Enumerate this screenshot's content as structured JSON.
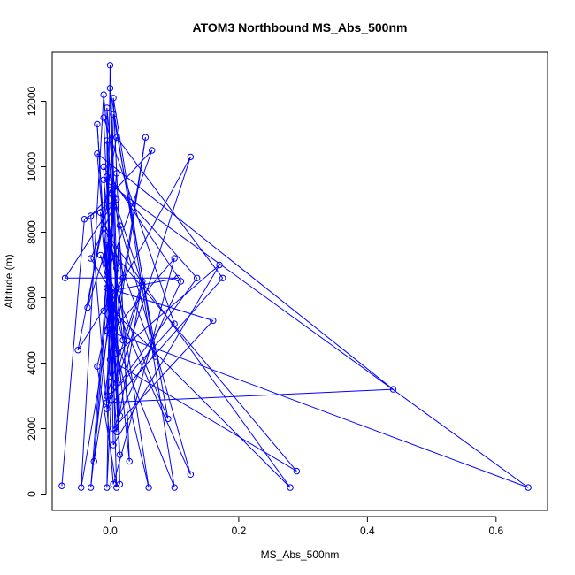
{
  "chart_data": {
    "type": "line",
    "title": "ATOM3 Northbound MS_Abs_500nm",
    "xlabel": "MS_Abs_500nm",
    "ylabel": "Altitude (m)",
    "xlim": [
      -0.09,
      0.68
    ],
    "ylim": [
      -500,
      13500
    ],
    "x_ticks": [
      0.0,
      0.2,
      0.4,
      0.6
    ],
    "x_tick_labels": [
      "0.0",
      "0.2",
      "0.4",
      "0.6"
    ],
    "y_ticks": [
      0,
      2000,
      4000,
      6000,
      8000,
      10000,
      12000
    ],
    "y_tick_labels": [
      "0",
      "2000",
      "4000",
      "6000",
      "8000",
      "10000",
      "12000"
    ],
    "grid": false,
    "series": [
      {
        "color": "#0000ff",
        "marker": "open-circle",
        "points": [
          [
            -0.075,
            250
          ],
          [
            -0.04,
            8400
          ],
          [
            0.01,
            9000
          ],
          [
            -0.03,
            7200
          ],
          [
            0.005,
            6100
          ],
          [
            -0.02,
            3900
          ],
          [
            0.01,
            200
          ],
          [
            -0.005,
            10800
          ],
          [
            0.0,
            5300
          ],
          [
            -0.045,
            200
          ],
          [
            -0.01,
            12200
          ],
          [
            0.005,
            8800
          ],
          [
            -0.005,
            3000
          ],
          [
            0.05,
            6500
          ],
          [
            0.01,
            1900
          ],
          [
            -0.02,
            11300
          ],
          [
            0.0,
            4900
          ],
          [
            0.1,
            7200
          ],
          [
            0.005,
            300
          ],
          [
            -0.03,
            8500
          ],
          [
            0.065,
            10500
          ],
          [
            -0.005,
            6700
          ],
          [
            0.015,
            2400
          ],
          [
            0.0,
            12400
          ],
          [
            0.1,
            200
          ],
          [
            -0.01,
            5600
          ],
          [
            0.01,
            9800
          ],
          [
            -0.025,
            1000
          ],
          [
            0.055,
            10900
          ],
          [
            0.0,
            3600
          ],
          [
            0.015,
            8200
          ],
          [
            -0.005,
            200
          ],
          [
            0.005,
            11600
          ],
          [
            0.09,
            2300
          ],
          [
            -0.015,
            7300
          ],
          [
            0.02,
            4700
          ],
          [
            -0.01,
            9600
          ],
          [
            0.65,
            200
          ],
          [
            -0.005,
            5000
          ],
          [
            0.0,
            13100
          ],
          [
            0.01,
            6900
          ],
          [
            -0.005,
            2800
          ],
          [
            0.44,
            3200
          ],
          [
            -0.02,
            10400
          ],
          [
            0.0,
            5700
          ],
          [
            0.28,
            200
          ],
          [
            -0.01,
            8100
          ],
          [
            0.01,
            4300
          ],
          [
            0.17,
            7000
          ],
          [
            0.005,
            1500
          ],
          [
            -0.005,
            11800
          ],
          [
            0.02,
            6600
          ],
          [
            -0.05,
            4400
          ],
          [
            0.0,
            9300
          ],
          [
            0.125,
            600
          ],
          [
            -0.005,
            6300
          ],
          [
            0.16,
            5300
          ],
          [
            0.005,
            2000
          ],
          [
            0.11,
            6500
          ],
          [
            -0.01,
            10000
          ],
          [
            0.0,
            4100
          ],
          [
            0.29,
            700
          ],
          [
            -0.005,
            7600
          ],
          [
            0.03,
            1000
          ],
          [
            0.005,
            12100
          ],
          [
            0.07,
            4200
          ],
          [
            -0.015,
            8600
          ],
          [
            0.01,
            3400
          ],
          [
            0.125,
            10300
          ],
          [
            0.0,
            5800
          ],
          [
            -0.03,
            200
          ],
          [
            0.005,
            9100
          ],
          [
            0.05,
            6400
          ],
          [
            -0.005,
            2600
          ],
          [
            0.175,
            6600
          ],
          [
            0.01,
            10900
          ],
          [
            -0.035,
            5700
          ],
          [
            0.0,
            7900
          ],
          [
            0.06,
            200
          ],
          [
            0.005,
            4800
          ],
          [
            -0.01,
            11500
          ],
          [
            0.1,
            5200
          ],
          [
            0.0,
            3000
          ],
          [
            0.135,
            6600
          ],
          [
            -0.005,
            9700
          ],
          [
            0.015,
            1200
          ],
          [
            0.0,
            6200
          ],
          [
            0.105,
            6600
          ],
          [
            -0.07,
            6600
          ],
          [
            0.005,
            8900
          ],
          [
            0.015,
            300
          ]
        ]
      }
    ]
  }
}
